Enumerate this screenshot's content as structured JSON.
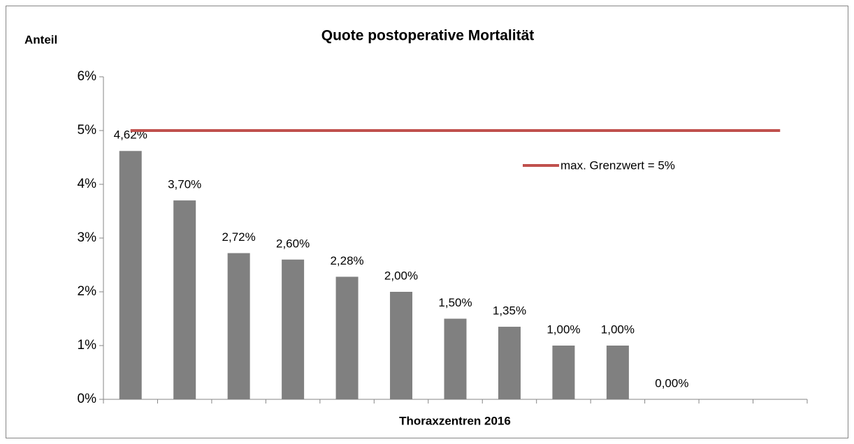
{
  "chart_data": {
    "type": "bar",
    "title": "Quote postoperative Mortalität",
    "ylabel": "Anteil",
    "xlabel": "Thoraxzentren 2016",
    "categories": [
      null,
      null,
      null,
      null,
      null,
      null,
      null,
      null,
      null,
      null,
      null,
      null,
      null
    ],
    "series": [
      {
        "type": "bar",
        "color": "#808080",
        "values": [
          4.62,
          3.7,
          2.72,
          2.6,
          2.28,
          2.0,
          1.5,
          1.35,
          1.0,
          1.0,
          0,
          null,
          null
        ],
        "value_labels": [
          "4,62%",
          "3,70%",
          "2,72%",
          "2,60%",
          "2,28%",
          "2,00%",
          "1,50%",
          "1,35%",
          "1,00%",
          "1,00%",
          "0,00%",
          null,
          null
        ]
      },
      {
        "type": "line",
        "name": "max. Grenzwert = 5%",
        "color": "#c0504d",
        "values": [
          5,
          5,
          5,
          5,
          5,
          5,
          5,
          5,
          5,
          5,
          5,
          5,
          5
        ]
      }
    ],
    "ylim": [
      0,
      6
    ],
    "yticks": [
      {
        "value": 0,
        "label": "0%"
      },
      {
        "value": 1,
        "label": "1%"
      },
      {
        "value": 2,
        "label": "2%"
      },
      {
        "value": 3,
        "label": "3%"
      },
      {
        "value": 4,
        "label": "4%"
      },
      {
        "value": 5,
        "label": "5%"
      },
      {
        "value": 6,
        "label": "6%"
      }
    ],
    "grid": false
  }
}
